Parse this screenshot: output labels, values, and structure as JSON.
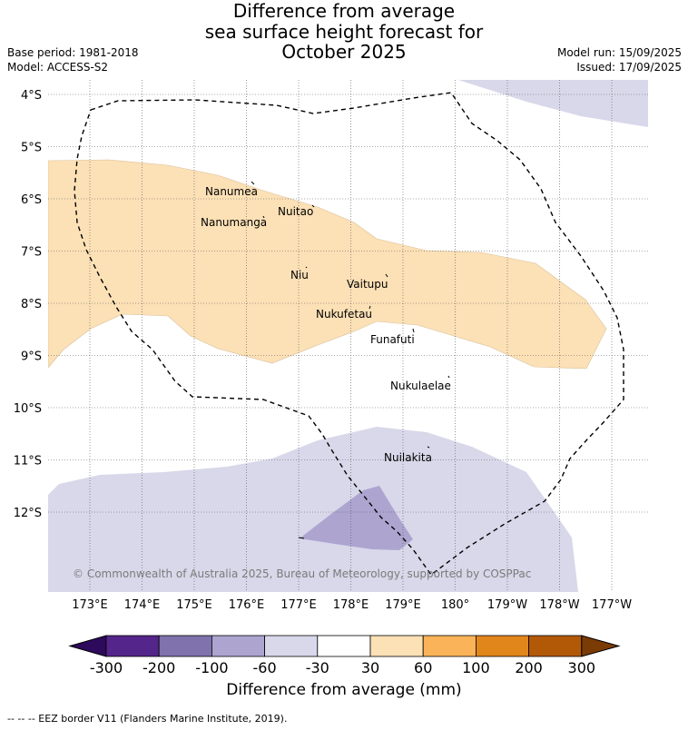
{
  "title": {
    "line1": "Difference from average",
    "line2": "sea surface height forecast for",
    "line3": "October 2025"
  },
  "meta": {
    "base_period": "Base period: 1981-2018",
    "model": "Model: ACCESS-S2",
    "model_run": "Model run: 15/09/2025",
    "issued": "Issued: 17/09/2025"
  },
  "map": {
    "lat_labels": [
      "4°S",
      "5°S",
      "6°S",
      "7°S",
      "8°S",
      "9°S",
      "10°S",
      "11°S",
      "12°S"
    ],
    "lon_labels": [
      "173°E",
      "174°E",
      "175°E",
      "176°E",
      "177°E",
      "178°E",
      "179°E",
      "180°",
      "179°W",
      "178°W",
      "177°W"
    ],
    "places": [
      "Nanumea",
      "Nuitao",
      "Nanumanga",
      "Niu",
      "Vaitupu",
      "Nukufetau",
      "Funafuti",
      "Nukulaelae",
      "Nuilakita"
    ],
    "copyright": "© Commonwealth of Australia 2025, Bureau of Meteorology, supported by COSPPac",
    "shading_colors": {
      "above_30_60": "#fce0b6",
      "below_30_60": "#d8d8ea",
      "below_60_100": "#ada5d0"
    }
  },
  "legend": {
    "ticks": [
      "-300",
      "-200",
      "-100",
      "-60",
      "-30",
      "30",
      "60",
      "100",
      "200",
      "300"
    ],
    "colors": [
      "#2d0a5c",
      "#54258a",
      "#7f72ad",
      "#ada5d0",
      "#d8d8ea",
      "#ffffff",
      "#fce0b6",
      "#fbb35a",
      "#e1861b",
      "#b25907",
      "#7a3b05"
    ],
    "title": "Difference from average (mm)"
  },
  "footnote": "--  --  -- EEZ border V11 (Flanders Marine Institute, 2019)."
}
